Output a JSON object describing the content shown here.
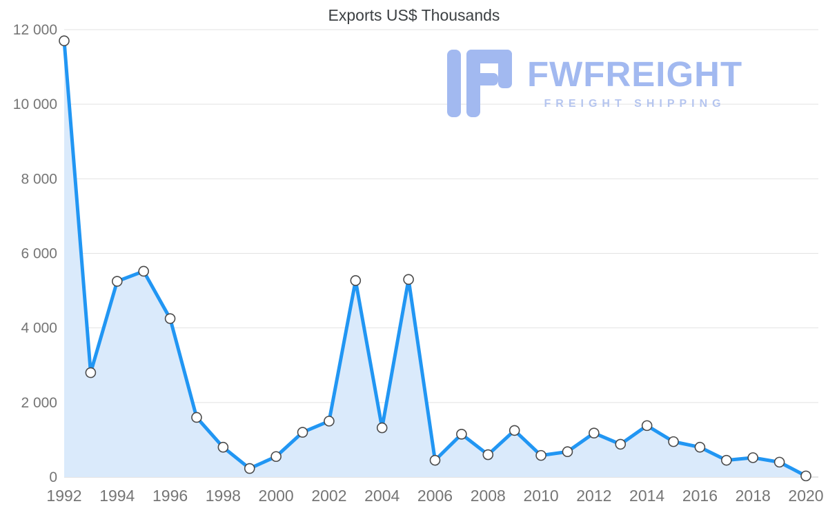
{
  "chart_data": {
    "type": "area",
    "title": "Exports US$ Thousands",
    "x": [
      1992,
      1993,
      1994,
      1995,
      1996,
      1997,
      1998,
      1999,
      2000,
      2001,
      2002,
      2003,
      2004,
      2005,
      2006,
      2007,
      2008,
      2009,
      2010,
      2011,
      2012,
      2013,
      2014,
      2015,
      2016,
      2017,
      2018,
      2019,
      2020
    ],
    "values": [
      11700,
      2800,
      5250,
      5520,
      4250,
      1600,
      800,
      230,
      550,
      1200,
      1500,
      5270,
      1320,
      5300,
      450,
      1150,
      600,
      1250,
      580,
      680,
      1180,
      880,
      1380,
      950,
      800,
      450,
      520,
      400,
      30
    ],
    "ylim": [
      0,
      12000
    ],
    "ytick_interval": 2000,
    "ytick_labels": [
      "0",
      "2 000",
      "4 000",
      "6 000",
      "8 000",
      "10 000",
      "12 000"
    ],
    "xtick_labels": [
      "1992",
      "1994",
      "1996",
      "1998",
      "2000",
      "2002",
      "2004",
      "2006",
      "2008",
      "2010",
      "2012",
      "2014",
      "2016",
      "2018",
      "2020"
    ],
    "grid": "horizontal",
    "legend": "none",
    "line_color": "#2196f3",
    "fill_color": "#daeafb",
    "marker_fill": "#ffffff",
    "marker_stroke": "#4a4a4a",
    "gridline_color": "#e2e2e2",
    "axis_color": "#c8c8c8",
    "label_color": "#757575"
  },
  "watermark": {
    "brand": "FWFREIGHT",
    "tagline": "FREIGHT SHIPPING",
    "color": "#a2b9f0"
  }
}
